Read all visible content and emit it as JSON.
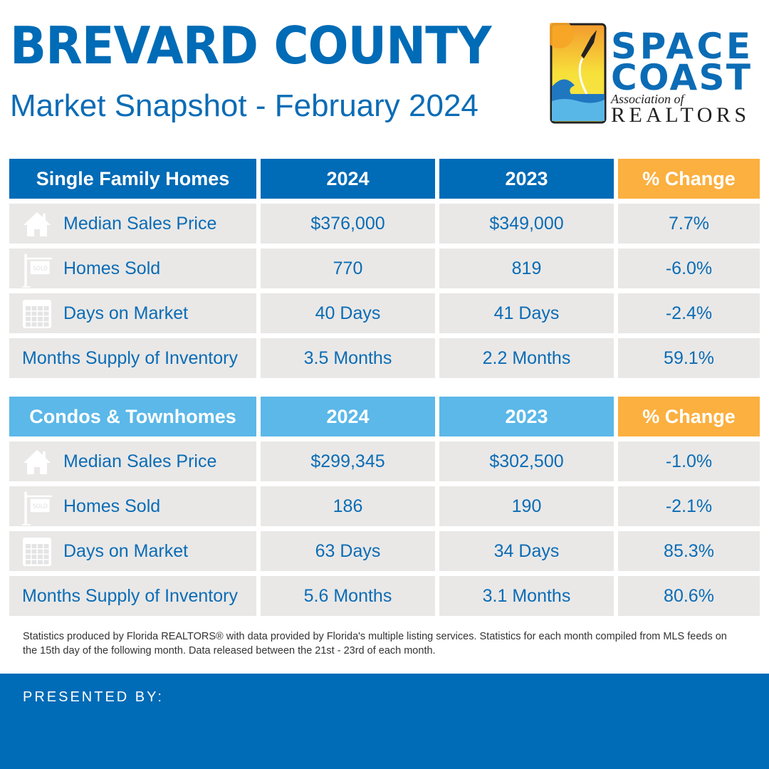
{
  "header": {
    "title": "BREVARD COUNTY",
    "subtitle": "Market Snapshot - February 2024"
  },
  "logo": {
    "line1": "SPACE",
    "line2": "COAST",
    "line3": "Association of",
    "line4": "REALTORS"
  },
  "colors": {
    "dark_blue": "#006bb6",
    "light_blue": "#5bb8e8",
    "orange": "#fbb040",
    "row_gray": "#e9e8e7"
  },
  "sections": [
    {
      "title": "Single Family Homes",
      "col_2024": "2024",
      "col_2023": "2023",
      "col_change": "% Change",
      "rows": [
        {
          "icon": "house-icon",
          "label": "Median Sales Price",
          "v2024": "$376,000",
          "v2023": "$349,000",
          "change": "7.7%"
        },
        {
          "icon": "sold-sign-icon",
          "label": "Homes Sold",
          "v2024": "770",
          "v2023": "819",
          "change": "-6.0%"
        },
        {
          "icon": "calendar-icon",
          "label": "Days on Market",
          "v2024": "40 Days",
          "v2023": "41 Days",
          "change": "-2.4%"
        },
        {
          "icon": "",
          "label": "Months Supply of Inventory",
          "v2024": "3.5 Months",
          "v2023": "2.2 Months",
          "change": "59.1%"
        }
      ]
    },
    {
      "title": "Condos & Townhomes",
      "col_2024": "2024",
      "col_2023": "2023",
      "col_change": "% Change",
      "rows": [
        {
          "icon": "house-icon",
          "label": "Median Sales Price",
          "v2024": "$299,345",
          "v2023": "$302,500",
          "change": "-1.0%"
        },
        {
          "icon": "sold-sign-icon",
          "label": "Homes Sold",
          "v2024": "186",
          "v2023": "190",
          "change": "-2.1%"
        },
        {
          "icon": "calendar-icon",
          "label": "Days on Market",
          "v2024": "63 Days",
          "v2023": "34 Days",
          "change": "85.3%"
        },
        {
          "icon": "",
          "label": "Months Supply of Inventory",
          "v2024": "5.6 Months",
          "v2023": "3.1 Months",
          "change": "80.6%"
        }
      ]
    }
  ],
  "footnote": "Statistics produced by Florida REALTORS® with data provided by Florida's multiple listing services. Statistics for each month compiled from MLS feeds on the 15th day of the following month. Data released between the 21st - 23rd of each month.",
  "footer": {
    "presented_by": "PRESENTED BY:"
  }
}
